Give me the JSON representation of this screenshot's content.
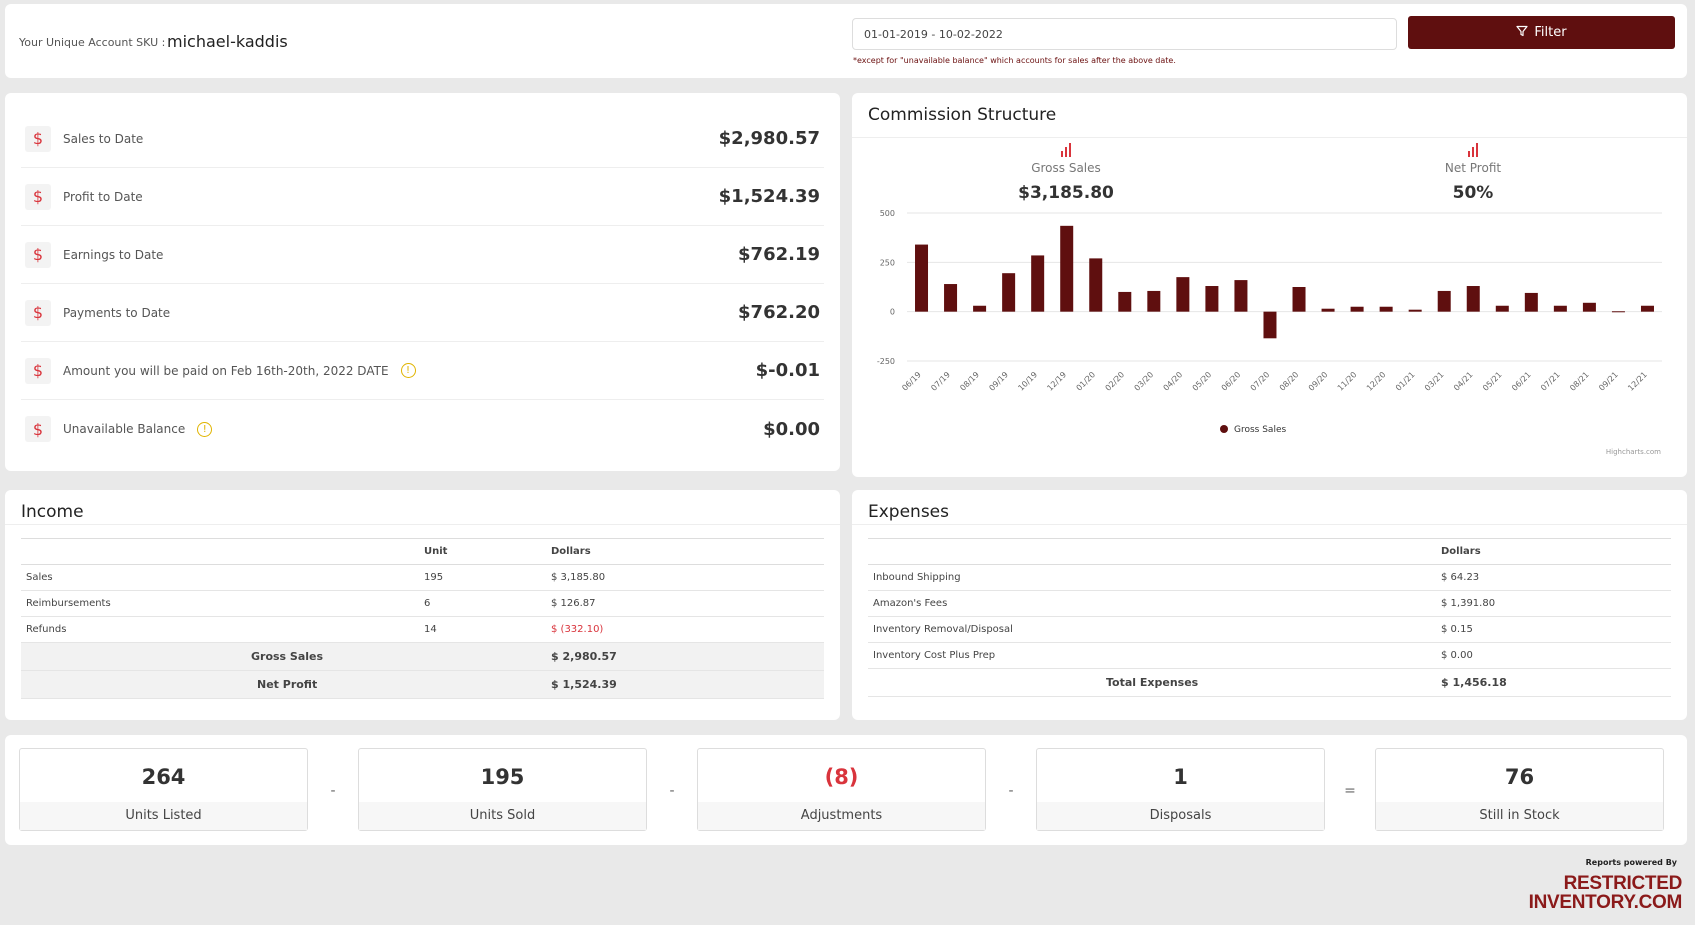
{
  "header": {
    "sku_label": "Your Unique Account SKU :",
    "sku_value": "michael-kaddis",
    "date_range": "01-01-2019 - 10-02-2022",
    "note": "*except for \"unavailable balance\" which accounts for sales after the above date.",
    "filter_label": "Filter"
  },
  "stats": [
    {
      "label": "Sales to Date",
      "value": "$2,980.57"
    },
    {
      "label": "Profit to Date",
      "value": "$1,524.39"
    },
    {
      "label": "Earnings to Date",
      "value": "$762.19"
    },
    {
      "label": "Payments to Date",
      "value": "$762.20"
    },
    {
      "label": "Amount you will be paid on Feb 16th-20th, 2022 DATE",
      "value": "$-0.01"
    },
    {
      "label": "Unavailable Balance",
      "value": "$0.00"
    }
  ],
  "commission": {
    "title": "Commission Structure",
    "gross_label": "Gross Sales",
    "gross_value": "$3,185.80",
    "net_label": "Net Profit",
    "net_value": "50%",
    "credit": "Highcharts.com"
  },
  "chart_data": {
    "type": "bar",
    "categories": [
      "06/19",
      "07/19",
      "08/19",
      "09/19",
      "10/19",
      "12/19",
      "01/20",
      "02/20",
      "03/20",
      "04/20",
      "05/20",
      "06/20",
      "07/20",
      "08/20",
      "09/20",
      "11/20",
      "12/20",
      "01/21",
      "03/21",
      "04/21",
      "05/21",
      "06/21",
      "07/21",
      "08/21",
      "09/21",
      "12/21"
    ],
    "series": [
      {
        "name": "Gross Sales",
        "color": "#5f0f0f",
        "values": [
          340,
          140,
          30,
          195,
          285,
          435,
          270,
          100,
          105,
          175,
          130,
          160,
          -135,
          125,
          15,
          25,
          25,
          10,
          105,
          130,
          30,
          95,
          30,
          45,
          2,
          30
        ]
      }
    ],
    "ylim": [
      -250,
      500
    ],
    "yticks": [
      -250,
      0,
      250,
      500
    ],
    "legend": "bottom-center",
    "grid": true
  },
  "income": {
    "title": "Income",
    "headers": [
      "",
      "Unit",
      "Dollars"
    ],
    "rows": [
      {
        "name": "Sales",
        "unit": "195",
        "dollars": "$ 3,185.80"
      },
      {
        "name": "Reimbursements",
        "unit": "6",
        "dollars": "$ 126.87"
      },
      {
        "name": "Refunds",
        "unit": "14",
        "dollars": "$ (332.10)"
      }
    ],
    "totals": [
      {
        "name": "Gross Sales",
        "dollars": "$ 2,980.57"
      },
      {
        "name": "Net Profit",
        "dollars": "$ 1,524.39"
      }
    ]
  },
  "expenses": {
    "title": "Expenses",
    "headers": [
      "",
      "Dollars"
    ],
    "rows": [
      {
        "name": "Inbound Shipping",
        "dollars": "$ 64.23"
      },
      {
        "name": "Amazon's Fees",
        "dollars": "$ 1,391.80"
      },
      {
        "name": "Inventory Removal/Disposal",
        "dollars": "$ 0.15"
      },
      {
        "name": "Inventory Cost Plus Prep",
        "dollars": "$ 0.00"
      }
    ],
    "total": {
      "name": "Total Expenses",
      "dollars": "$ 1,456.18"
    }
  },
  "units": [
    {
      "value": "264",
      "label": "Units Listed"
    },
    {
      "value": "195",
      "label": "Units Sold"
    },
    {
      "value": "(8)",
      "label": "Adjustments",
      "color": "#d9343c"
    },
    {
      "value": "1",
      "label": "Disposals"
    },
    {
      "value": "76",
      "label": "Still in Stock"
    }
  ],
  "operators": [
    "-",
    "-",
    "-",
    "="
  ],
  "footer": {
    "powered_by": "Reports powered By",
    "logo_line1": "RESTRICTED",
    "logo_line2": "INVENTORY.COM"
  }
}
